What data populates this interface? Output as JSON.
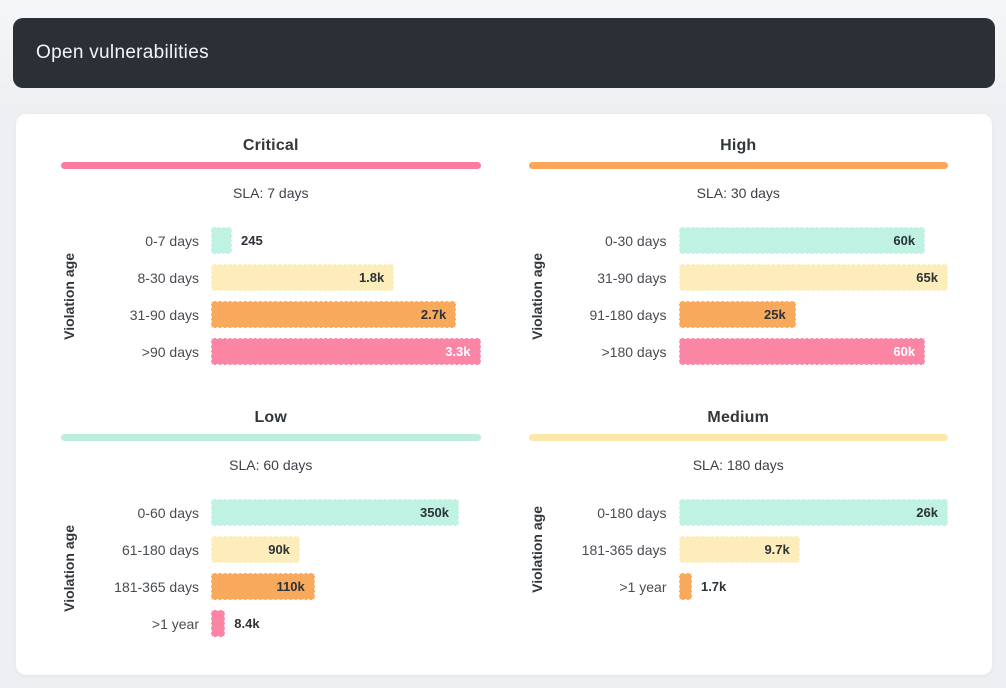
{
  "page": {
    "background": "#edeff2"
  },
  "header": {
    "title": "Open vulnerabilities",
    "background": "#2b3036",
    "text_color": "#f3f4f6"
  },
  "ui_colors": {
    "card_background": "#ffffff",
    "title_text": "#32373c",
    "category_text": "#474c52",
    "value_text_dark": "#2c3238",
    "value_text_light": "#ffffff"
  },
  "chart_data": [
    {
      "type": "bar",
      "orientation": "horizontal",
      "title": "Critical",
      "accent_color": "#fa7ba0",
      "sla_label": "SLA: 7 days",
      "ylabel": "Violation age",
      "grid": false,
      "categories": [
        "0-7 days",
        "8-30 days",
        "31-90 days",
        ">90 days"
      ],
      "values": [
        245,
        1800,
        2700,
        3300
      ],
      "value_labels": [
        "245",
        "1.8k",
        "2.7k",
        "3.3k"
      ],
      "bar_colors": [
        "#bff2e2",
        "#fcedbb",
        "#f9a95c",
        "#fb85a5"
      ],
      "bar_width_pct": [
        7.8,
        68,
        91,
        100
      ],
      "label_inside": [
        false,
        true,
        true,
        true
      ],
      "label_colors": [
        "#2c3238",
        "#2c3238",
        "#2c3238",
        "#ffffff"
      ]
    },
    {
      "type": "bar",
      "orientation": "horizontal",
      "title": "High",
      "accent_color": "#f9a658",
      "sla_label": "SLA: 30 days",
      "ylabel": "Violation age",
      "grid": false,
      "categories": [
        "0-30 days",
        "31-90 days",
        "91-180 days",
        ">180 days"
      ],
      "values": [
        60000,
        65000,
        25000,
        60000
      ],
      "value_labels": [
        "60k",
        "65k",
        "25k",
        "60k"
      ],
      "bar_colors": [
        "#bff2e2",
        "#fcedbb",
        "#f9a95c",
        "#fb85a5"
      ],
      "bar_width_pct": [
        91.5,
        100,
        43.5,
        91.5
      ],
      "label_inside": [
        true,
        true,
        true,
        true
      ],
      "label_colors": [
        "#2c3238",
        "#2c3238",
        "#2c3238",
        "#ffffff"
      ]
    },
    {
      "type": "bar",
      "orientation": "horizontal",
      "title": "Low",
      "accent_color": "#bceedd",
      "sla_label": "SLA: 60 days",
      "ylabel": "Violation age",
      "grid": false,
      "categories": [
        "0-60 days",
        "61-180 days",
        "181-365 days",
        ">1 year"
      ],
      "values": [
        350000,
        90000,
        110000,
        8400
      ],
      "value_labels": [
        "350k",
        "90k",
        "110k",
        "8.4k"
      ],
      "bar_colors": [
        "#bff2e2",
        "#fcedbb",
        "#f9a95c",
        "#fb85a5"
      ],
      "bar_width_pct": [
        92,
        33,
        38.5,
        5.3
      ],
      "label_inside": [
        true,
        true,
        true,
        false
      ],
      "label_colors": [
        "#2c3238",
        "#2c3238",
        "#2c3238",
        "#2c3238"
      ]
    },
    {
      "type": "bar",
      "orientation": "horizontal",
      "title": "Medium",
      "accent_color": "#fae9ab",
      "sla_label": "SLA: 180 days",
      "ylabel": "Violation age",
      "grid": false,
      "categories": [
        "0-180 days",
        "181-365 days",
        ">1 year"
      ],
      "values": [
        26000,
        9700,
        1700
      ],
      "value_labels": [
        "26k",
        "9.7k",
        "1.7k"
      ],
      "bar_colors": [
        "#bff2e2",
        "#fcedbb",
        "#f9a95c"
      ],
      "bar_width_pct": [
        100,
        45,
        5
      ],
      "label_inside": [
        true,
        true,
        false
      ],
      "label_colors": [
        "#2c3238",
        "#2c3238",
        "#2c3238"
      ]
    }
  ]
}
